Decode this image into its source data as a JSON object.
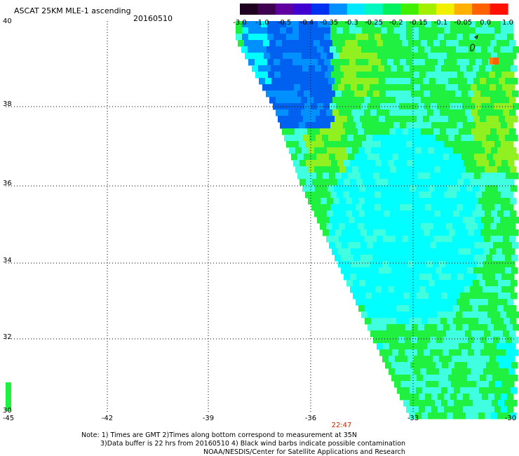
{
  "header": {
    "title": "ASCAT 25KM MLE-1 ascending",
    "date": "20160510"
  },
  "colorbar": {
    "tick_labels": [
      "-3.0",
      "-1.0",
      "-0.5",
      "-0.4",
      "-0.35",
      "-0.3",
      "-0.25",
      "-0.2",
      "-0.15",
      "-0.1",
      "-0.05",
      "0.0",
      "1.0"
    ],
    "colors": [
      "#200020",
      "#400050",
      "#6000a0",
      "#4000d0",
      "#0030f0",
      "#0090ff",
      "#00e8ff",
      "#00f8c0",
      "#00f060",
      "#40f000",
      "#a0f000",
      "#f0f000",
      "#ffb000",
      "#ff6000",
      "#ff1000"
    ]
  },
  "axes": {
    "lat_labels": [
      "40",
      "38",
      "36",
      "34",
      "32",
      "30"
    ],
    "lon_labels": [
      "-45",
      "-42",
      "-39",
      "-36",
      "-33",
      "-30"
    ],
    "time_label": "22:47"
  },
  "notes": {
    "line1": "Note: 1) Times are GMT 2)Times along bottom correspond to measurement at 35N",
    "line2": "3)Data buffer is 22 hrs from 20160510 4) Black wind barbs indicate possible contamination",
    "line3": "NOAA/NESDIS/Center for Satellite Applications and Research"
  },
  "field_colors": {
    "deep_blue": "#0060f0",
    "blue": "#0090ff",
    "cyan": "#00ffff",
    "light_cyan": "#40ffe0",
    "green": "#20f040",
    "yellow_green": "#90f020",
    "orange": "#ff8000"
  }
}
